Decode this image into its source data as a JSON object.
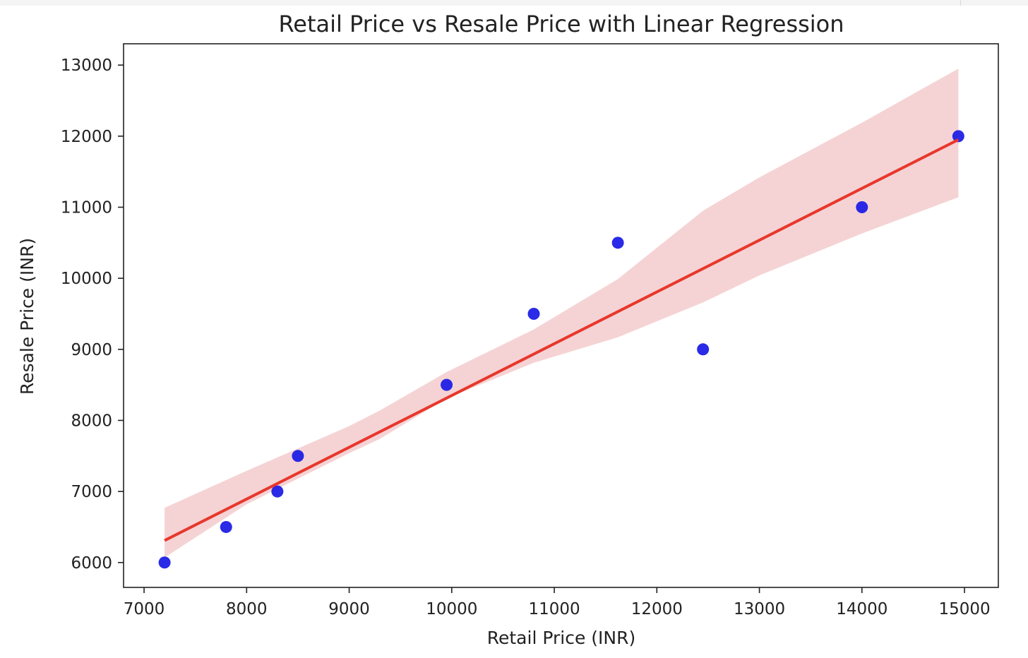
{
  "chart_data": {
    "type": "scatter",
    "title": "Retail Price vs Resale Price with Linear Regression",
    "xlabel": "Retail Price (INR)",
    "ylabel": "Resale Price (INR)",
    "xlim": [
      6800,
      15330
    ],
    "ylim": [
      5650,
      13300
    ],
    "xticks": [
      7000,
      8000,
      9000,
      10000,
      11000,
      12000,
      13000,
      14000,
      15000
    ],
    "yticks": [
      6000,
      7000,
      8000,
      9000,
      10000,
      11000,
      12000,
      13000
    ],
    "grid": false,
    "legend": "none",
    "points": [
      {
        "x": 7200,
        "y": 6000
      },
      {
        "x": 7800,
        "y": 6500
      },
      {
        "x": 8300,
        "y": 7000
      },
      {
        "x": 8500,
        "y": 7500
      },
      {
        "x": 9950,
        "y": 8500
      },
      {
        "x": 10800,
        "y": 9500
      },
      {
        "x": 11620,
        "y": 10500
      },
      {
        "x": 12450,
        "y": 9000
      },
      {
        "x": 14000,
        "y": 11000
      },
      {
        "x": 14940,
        "y": 12000
      }
    ],
    "regression_line": {
      "x": [
        7200,
        14940
      ],
      "y": [
        6310,
        11950
      ]
    },
    "confidence_band": {
      "x": [
        7200,
        8000,
        9000,
        9300,
        9950,
        10800,
        11620,
        12450,
        13000,
        14000,
        14940
      ],
      "lower": [
        6070,
        6820,
        7540,
        7740,
        8310,
        8810,
        9170,
        9660,
        10040,
        10630,
        11140
      ],
      "upper": [
        6770,
        7290,
        7920,
        8140,
        8680,
        9280,
        9990,
        10950,
        11420,
        12190,
        12950
      ]
    },
    "colors": {
      "points": "#1f1fe6",
      "line": "#e8372c",
      "band": "#f5d3d4",
      "axes": "#222222"
    }
  }
}
